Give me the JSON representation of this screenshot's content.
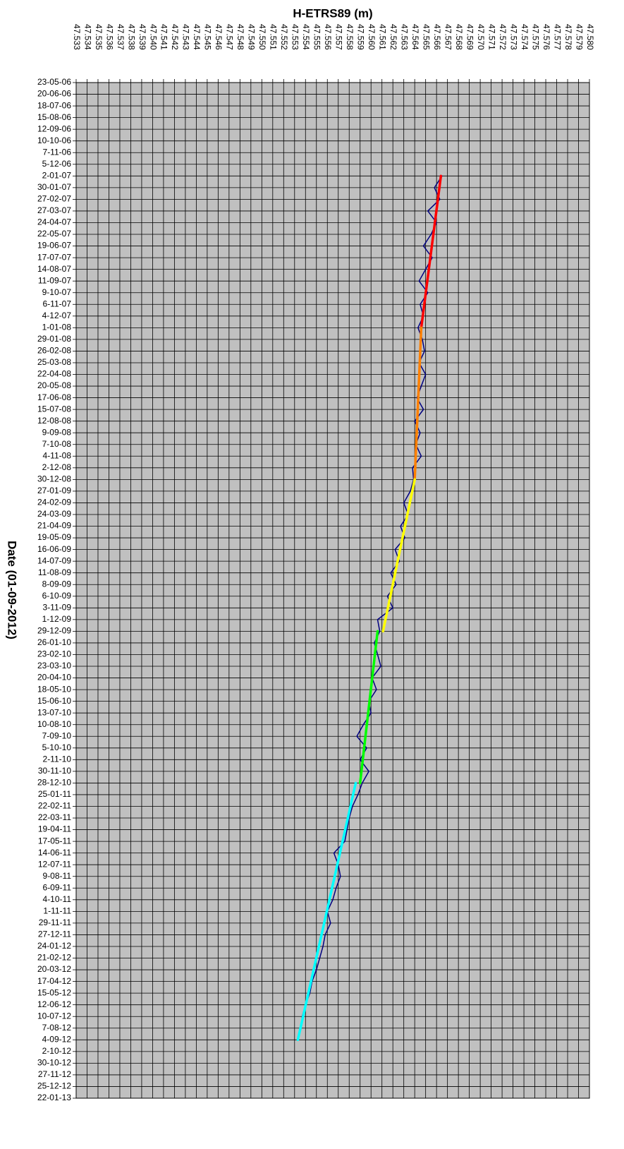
{
  "chart_data": {
    "type": "line",
    "orientation": "vertical",
    "xlabel": "H-ETRS89 (m)",
    "ylabel": "Date (01-09-2012)",
    "grid": true,
    "background": "#c0c0c0",
    "xlim": [
      47.533,
      47.58
    ],
    "xticks": [
      47.533,
      47.534,
      47.535,
      47.536,
      47.537,
      47.538,
      47.539,
      {
        "value": 47.54,
        "label": "47.540"
      },
      47.541,
      47.542,
      47.543,
      47.544,
      47.545,
      47.546,
      47.547,
      47.548,
      47.549,
      {
        "value": 47.55,
        "label": "47.550"
      },
      47.551,
      47.552,
      47.553,
      47.554,
      47.555,
      47.556,
      47.557,
      47.558,
      47.559,
      {
        "value": 47.56,
        "label": "47.560"
      },
      47.561,
      47.562,
      47.563,
      47.564,
      47.565,
      47.566,
      47.567,
      47.568,
      47.569,
      {
        "value": 47.57,
        "label": "47.570"
      },
      47.571,
      47.572,
      47.573,
      47.574,
      47.575,
      47.576,
      47.577,
      47.578,
      47.579,
      {
        "value": 47.58,
        "label": "47.580"
      }
    ],
    "ylim": [
      "2006-05-23",
      "2013-01-22"
    ],
    "yticks": [
      {
        "value": "2006-05-23",
        "label": "23-05-06"
      },
      {
        "value": "2006-06-20",
        "label": "20-06-06"
      },
      {
        "value": "2006-07-18",
        "label": "18-07-06"
      },
      {
        "value": "2006-08-15",
        "label": "15-08-06"
      },
      {
        "value": "2006-09-12",
        "label": "12-09-06"
      },
      {
        "value": "2006-10-10",
        "label": "10-10-06"
      },
      {
        "value": "2006-11-07",
        "label": "7-11-06"
      },
      {
        "value": "2006-12-05",
        "label": "5-12-06"
      },
      {
        "value": "2007-01-02",
        "label": "2-01-07"
      },
      {
        "value": "2007-01-30",
        "label": "30-01-07"
      },
      {
        "value": "2007-02-27",
        "label": "27-02-07"
      },
      {
        "value": "2007-03-27",
        "label": "27-03-07"
      },
      {
        "value": "2007-04-24",
        "label": "24-04-07"
      },
      {
        "value": "2007-05-22",
        "label": "22-05-07"
      },
      {
        "value": "2007-06-19",
        "label": "19-06-07"
      },
      {
        "value": "2007-07-17",
        "label": "17-07-07"
      },
      {
        "value": "2007-08-14",
        "label": "14-08-07"
      },
      {
        "value": "2007-09-11",
        "label": "11-09-07"
      },
      {
        "value": "2007-10-09",
        "label": "9-10-07"
      },
      {
        "value": "2007-11-06",
        "label": "6-11-07"
      },
      {
        "value": "2007-12-04",
        "label": "4-12-07"
      },
      {
        "value": "2008-01-01",
        "label": "1-01-08"
      },
      {
        "value": "2008-01-29",
        "label": "29-01-08"
      },
      {
        "value": "2008-02-26",
        "label": "26-02-08"
      },
      {
        "value": "2008-03-25",
        "label": "25-03-08"
      },
      {
        "value": "2008-04-22",
        "label": "22-04-08"
      },
      {
        "value": "2008-05-20",
        "label": "20-05-08"
      },
      {
        "value": "2008-06-17",
        "label": "17-06-08"
      },
      {
        "value": "2008-07-15",
        "label": "15-07-08"
      },
      {
        "value": "2008-08-12",
        "label": "12-08-08"
      },
      {
        "value": "2008-09-09",
        "label": "9-09-08"
      },
      {
        "value": "2008-10-07",
        "label": "7-10-08"
      },
      {
        "value": "2008-11-04",
        "label": "4-11-08"
      },
      {
        "value": "2008-12-02",
        "label": "2-12-08"
      },
      {
        "value": "2008-12-30",
        "label": "30-12-08"
      },
      {
        "value": "2009-01-27",
        "label": "27-01-09"
      },
      {
        "value": "2009-02-24",
        "label": "24-02-09"
      },
      {
        "value": "2009-03-24",
        "label": "24-03-09"
      },
      {
        "value": "2009-04-21",
        "label": "21-04-09"
      },
      {
        "value": "2009-05-19",
        "label": "19-05-09"
      },
      {
        "value": "2009-06-16",
        "label": "16-06-09"
      },
      {
        "value": "2009-07-14",
        "label": "14-07-09"
      },
      {
        "value": "2009-08-11",
        "label": "11-08-09"
      },
      {
        "value": "2009-09-08",
        "label": "8-09-09"
      },
      {
        "value": "2009-10-06",
        "label": "6-10-09"
      },
      {
        "value": "2009-11-03",
        "label": "3-11-09"
      },
      {
        "value": "2009-12-01",
        "label": "1-12-09"
      },
      {
        "value": "2009-12-29",
        "label": "29-12-09"
      },
      {
        "value": "2010-01-26",
        "label": "26-01-10"
      },
      {
        "value": "2010-02-23",
        "label": "23-02-10"
      },
      {
        "value": "2010-03-23",
        "label": "23-03-10"
      },
      {
        "value": "2010-04-20",
        "label": "20-04-10"
      },
      {
        "value": "2010-05-18",
        "label": "18-05-10"
      },
      {
        "value": "2010-06-15",
        "label": "15-06-10"
      },
      {
        "value": "2010-07-13",
        "label": "13-07-10"
      },
      {
        "value": "2010-08-10",
        "label": "10-08-10"
      },
      {
        "value": "2010-09-07",
        "label": "7-09-10"
      },
      {
        "value": "2010-10-05",
        "label": "5-10-10"
      },
      {
        "value": "2010-11-02",
        "label": "2-11-10"
      },
      {
        "value": "2010-11-30",
        "label": "30-11-10"
      },
      {
        "value": "2010-12-28",
        "label": "28-12-10"
      },
      {
        "value": "2011-01-25",
        "label": "25-01-11"
      },
      {
        "value": "2011-02-22",
        "label": "22-02-11"
      },
      {
        "value": "2011-03-22",
        "label": "22-03-11"
      },
      {
        "value": "2011-04-19",
        "label": "19-04-11"
      },
      {
        "value": "2011-05-17",
        "label": "17-05-11"
      },
      {
        "value": "2011-06-14",
        "label": "14-06-11"
      },
      {
        "value": "2011-07-12",
        "label": "12-07-11"
      },
      {
        "value": "2011-08-09",
        "label": "9-08-11"
      },
      {
        "value": "2011-09-06",
        "label": "6-09-11"
      },
      {
        "value": "2011-10-04",
        "label": "4-10-11"
      },
      {
        "value": "2011-11-01",
        "label": "1-11-11"
      },
      {
        "value": "2011-11-29",
        "label": "29-11-11"
      },
      {
        "value": "2011-12-27",
        "label": "27-12-11"
      },
      {
        "value": "2012-01-24",
        "label": "24-01-12"
      },
      {
        "value": "2012-02-21",
        "label": "21-02-12"
      },
      {
        "value": "2012-03-20",
        "label": "20-03-12"
      },
      {
        "value": "2012-04-17",
        "label": "17-04-12"
      },
      {
        "value": "2012-05-15",
        "label": "15-05-12"
      },
      {
        "value": "2012-06-12",
        "label": "12-06-12"
      },
      {
        "value": "2012-07-10",
        "label": "10-07-12"
      },
      {
        "value": "2012-08-07",
        "label": "7-08-12"
      },
      {
        "value": "2012-09-04",
        "label": "4-09-12"
      },
      {
        "value": "2012-10-02",
        "label": "2-10-12"
      },
      {
        "value": "2012-10-30",
        "label": "30-10-12"
      },
      {
        "value": "2012-11-27",
        "label": "27-11-12"
      },
      {
        "value": "2012-12-25",
        "label": "25-12-12"
      },
      {
        "value": "2013-01-22",
        "label": "22-01-13"
      }
    ],
    "series": [
      {
        "color": "#000080",
        "width": 1.5,
        "x": [
          "2007-01-02",
          "2007-01-30",
          "2007-02-27",
          "2007-03-27",
          "2007-04-24",
          "2007-05-22",
          "2007-06-19",
          "2007-07-17",
          "2007-08-14",
          "2007-09-11",
          "2007-10-09",
          "2007-11-06",
          "2007-12-04",
          "2008-01-01",
          "2008-01-29",
          "2008-02-26",
          "2008-03-25",
          "2008-04-22",
          "2008-05-20",
          "2008-06-17",
          "2008-07-15",
          "2008-08-12",
          "2008-09-09",
          "2008-10-07",
          "2008-11-04",
          "2008-12-02",
          "2008-12-30",
          "2009-01-27",
          "2009-02-24",
          "2009-03-24",
          "2009-04-21",
          "2009-05-19",
          "2009-06-16",
          "2009-07-14",
          "2009-08-11",
          "2009-09-08",
          "2009-10-06",
          "2009-11-03",
          "2009-12-01",
          "2009-12-29",
          "2010-01-26",
          "2010-02-23",
          "2010-03-23",
          "2010-04-20",
          "2010-05-18",
          "2010-06-15",
          "2010-07-13",
          "2010-08-10",
          "2010-09-07",
          "2010-10-05",
          "2010-11-02",
          "2010-11-30",
          "2010-12-28",
          "2011-01-25",
          "2011-02-22",
          "2011-03-22",
          "2011-04-19",
          "2011-05-17",
          "2011-06-14",
          "2011-07-12",
          "2011-08-09",
          "2011-09-06",
          "2011-10-04",
          "2011-11-01",
          "2011-11-29",
          "2011-12-27",
          "2012-01-24",
          "2012-02-21",
          "2012-03-20",
          "2012-04-17",
          "2012-05-15",
          "2012-06-12",
          "2012-07-10",
          "2012-08-07",
          "2012-09-04"
        ],
        "values": [
          47.5665,
          47.5658,
          47.5663,
          47.5652,
          47.566,
          47.5655,
          47.5648,
          47.5656,
          47.565,
          47.5644,
          47.5652,
          47.5645,
          47.5648,
          47.5643,
          47.5647,
          47.5649,
          47.5644,
          47.565,
          47.5646,
          47.5642,
          47.5648,
          47.564,
          47.5645,
          47.5641,
          47.5646,
          47.5638,
          47.5639,
          47.5636,
          47.563,
          47.5634,
          47.5627,
          47.5631,
          47.5622,
          47.5626,
          47.5618,
          47.5623,
          47.5615,
          47.562,
          47.5606,
          47.5608,
          47.5603,
          47.5606,
          47.5609,
          47.5601,
          47.5605,
          47.5598,
          47.56,
          47.5593,
          47.5587,
          47.5596,
          47.559,
          47.5598,
          47.5592,
          47.5588,
          47.5583,
          47.558,
          47.5578,
          47.5576,
          47.5566,
          47.557,
          47.5572,
          47.5568,
          47.5565,
          47.556,
          47.5563,
          47.5558,
          47.5556,
          47.5553,
          47.555,
          47.5546,
          47.5544,
          47.554,
          47.5537,
          47.5536,
          47.5533
        ]
      },
      {
        "color": "#ff0000",
        "width": 3.5,
        "x": [
          "2007-01-02",
          "2008-01-01"
        ],
        "values": [
          47.5664,
          47.5646
        ]
      },
      {
        "color": "#ff8000",
        "width": 3.5,
        "x": [
          "2008-01-01",
          "2008-12-30"
        ],
        "values": [
          47.5646,
          47.564
        ]
      },
      {
        "color": "#ffff00",
        "width": 3.5,
        "x": [
          "2008-12-30",
          "2009-12-29"
        ],
        "values": [
          47.564,
          47.5611
        ]
      },
      {
        "color": "#00ff00",
        "width": 3.5,
        "x": [
          "2009-12-29",
          "2010-12-28"
        ],
        "values": [
          47.5606,
          47.559
        ]
      },
      {
        "color": "#00ffff",
        "width": 3.5,
        "x": [
          "2010-12-28",
          "2012-09-04"
        ],
        "values": [
          47.5586,
          47.5533
        ]
      }
    ]
  }
}
